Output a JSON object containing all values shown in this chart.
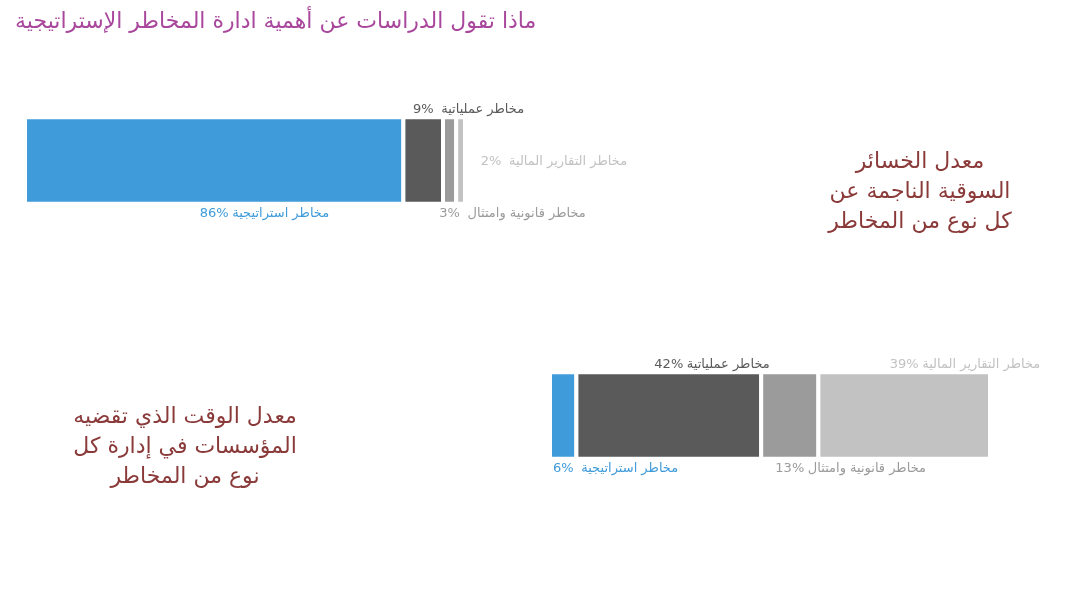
{
  "chart_data": [
    {
      "type": "bar",
      "orientation": "horizontal",
      "stacked": true,
      "title": "ماذا تقول الدراسات عن أهمية ادارة المخاطر الإستراتيجية",
      "categories": [
        null
      ],
      "series": [
        {
          "name": "مخاطر استراتيجية",
          "color": "#3f9bd9",
          "values": [
            86
          ],
          "value_labels": [
            "86%"
          ]
        },
        {
          "name": "مخاطر عملياتية",
          "color": "#5a5a5a",
          "values": [
            9
          ],
          "value_labels": [
            "9%"
          ]
        },
        {
          "name": "مخاطر قانونية وامتثال",
          "color": "#9b9b9b",
          "values": [
            3
          ],
          "value_labels": [
            "3%"
          ]
        },
        {
          "name": "مخاطر التقارير المالية",
          "color": "#c2c2c2",
          "values": [
            2
          ],
          "value_labels": [
            "2%"
          ]
        }
      ],
      "annotations": [
        "معدل الخسائر\nالسوقية الناجمة عن\nكل نوع من المخاطر"
      ]
    },
    {
      "type": "bar",
      "orientation": "horizontal",
      "stacked": true,
      "categories": [
        null
      ],
      "series": [
        {
          "name": "مخاطر استراتيجية",
          "color": "#3f9bd9",
          "values": [
            6
          ],
          "value_labels": [
            "6%"
          ]
        },
        {
          "name": "مخاطر عملياتية",
          "color": "#5a5a5a",
          "values": [
            42
          ],
          "value_labels": [
            "42%"
          ]
        },
        {
          "name": "مخاطر قانونية وامتثال",
          "color": "#9b9b9b",
          "values": [
            13
          ],
          "value_labels": [
            "13%"
          ]
        },
        {
          "name": "مخاطر التقارير المالية",
          "color": "#c2c2c2",
          "values": [
            39
          ],
          "value_labels": [
            "39%"
          ]
        }
      ],
      "annotations": [
        "معدل الوقت الذي تقضيه\nالمؤسسات في إدارة كل\nنوع من المخاطر"
      ]
    }
  ]
}
